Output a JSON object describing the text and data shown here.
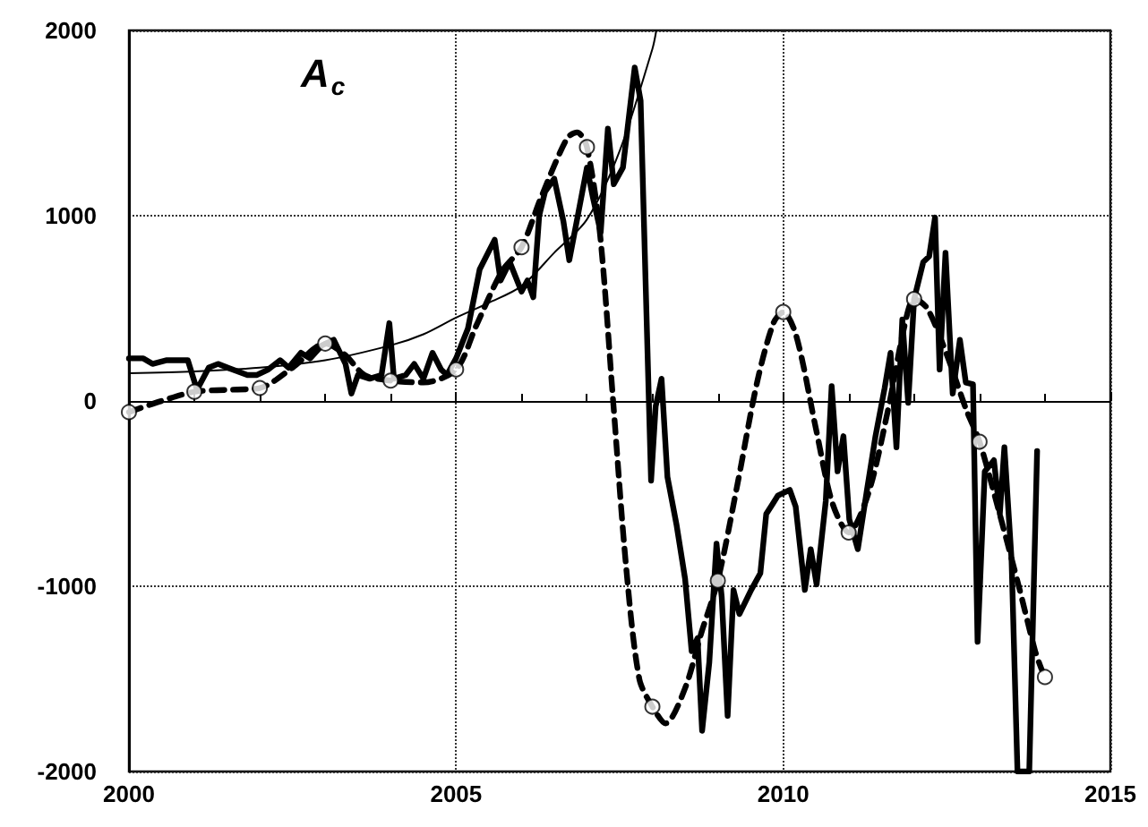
{
  "chart_data": {
    "type": "line",
    "title": "A$_{c}$",
    "xlim": [
      2000,
      2015
    ],
    "xticks": [
      2000,
      2005,
      2010,
      2015
    ],
    "ylim": [
      -2000,
      2000
    ],
    "yticks": [
      -2000,
      -1000,
      0,
      1000,
      2000
    ],
    "grid": true,
    "series": [
      {
        "color": "#000000",
        "line_style": "solid",
        "marker": "none",
        "x": [
          2000.0,
          2000.22,
          2000.36,
          2000.58,
          2000.76,
          2000.9,
          2001.04,
          2001.22,
          2001.36,
          2001.58,
          2001.81,
          2001.95,
          2002.13,
          2002.31,
          2002.44,
          2002.63,
          2002.77,
          2002.95,
          2003.13,
          2003.31,
          2003.4,
          2003.5,
          2003.68,
          2003.86,
          2003.98,
          2004.05,
          2004.23,
          2004.36,
          2004.5,
          2004.64,
          2004.77,
          2004.86,
          2005.0,
          2005.18,
          2005.36,
          2005.59,
          2005.68,
          2005.82,
          2006.0,
          2006.09,
          2006.18,
          2006.27,
          2006.36,
          2006.5,
          2006.64,
          2006.73,
          2006.86,
          2007.0,
          2007.09,
          2007.21,
          2007.32,
          2007.41,
          2007.55,
          2007.73,
          2007.82,
          2007.98,
          2008.05,
          2008.14,
          2008.23,
          2008.37,
          2008.5,
          2008.6,
          2008.69,
          2008.76,
          2008.87,
          2008.98,
          2009.06,
          2009.15,
          2009.24,
          2009.33,
          2009.51,
          2009.65,
          2009.74,
          2009.83,
          2009.92,
          2010.1,
          2010.19,
          2010.33,
          2010.42,
          2010.51,
          2010.65,
          2010.74,
          2010.83,
          2010.92,
          2011.01,
          2011.14,
          2011.28,
          2011.41,
          2011.55,
          2011.64,
          2011.73,
          2011.82,
          2011.91,
          2012.0,
          2012.14,
          2012.23,
          2012.32,
          2012.39,
          2012.48,
          2012.59,
          2012.7,
          2012.79,
          2012.9,
          2012.97,
          2013.08,
          2013.22,
          2013.31,
          2013.38,
          2013.49,
          2013.58,
          2013.76,
          2013.88
        ],
        "values": [
          230,
          230,
          200,
          220,
          220,
          220,
          60,
          180,
          200,
          170,
          140,
          140,
          170,
          220,
          180,
          260,
          230,
          300,
          330,
          200,
          40,
          140,
          120,
          140,
          420,
          120,
          140,
          200,
          120,
          260,
          170,
          140,
          230,
          390,
          710,
          870,
          650,
          750,
          590,
          650,
          560,
          1000,
          1130,
          1200,
          970,
          760,
          1000,
          1260,
          1100,
          910,
          1470,
          1170,
          1260,
          1800,
          1620,
          -430,
          -30,
          120,
          -410,
          -670,
          -960,
          -1350,
          -1280,
          -1780,
          -1410,
          -770,
          -1060,
          -1700,
          -1020,
          -1150,
          -1020,
          -930,
          -610,
          -560,
          -510,
          -480,
          -570,
          -1020,
          -800,
          -990,
          -540,
          80,
          -380,
          -190,
          -640,
          -800,
          -480,
          -190,
          70,
          260,
          -250,
          440,
          -10,
          550,
          750,
          780,
          990,
          170,
          800,
          40,
          330,
          100,
          90,
          -1300,
          -380,
          -320,
          -610,
          -250,
          -860,
          -2000,
          -2000,
          -270
        ]
      },
      {
        "color": "#000000",
        "line_style": "dashed",
        "marker": "none",
        "x": [
          2000,
          2000.5,
          2001,
          2001.5,
          2002,
          2002.5,
          2003,
          2003.3,
          2003.6,
          2004,
          2004.5,
          2005,
          2005.3,
          2005.7,
          2006,
          2006.3,
          2006.7,
          2006.85,
          2007,
          2007.2,
          2007.4,
          2007.6,
          2007.8,
          2008,
          2008.2,
          2008.5,
          2008.75,
          2009,
          2009.3,
          2009.6,
          2009.85,
          2010,
          2010.2,
          2010.5,
          2010.75,
          2011,
          2011.3,
          2011.6,
          2011.85,
          2012,
          2012.2,
          2012.5,
          2012.8,
          2013,
          2013.3,
          2013.6,
          2013.85,
          2013.95
        ],
        "values": [
          -60,
          0,
          50,
          60,
          70,
          180,
          310,
          250,
          140,
          110,
          100,
          170,
          400,
          700,
          830,
          1100,
          1420,
          1450,
          1370,
          900,
          0,
          -900,
          -1500,
          -1650,
          -1740,
          -1550,
          -1250,
          -970,
          -450,
          100,
          420,
          480,
          350,
          -150,
          -550,
          -710,
          -500,
          -50,
          400,
          550,
          500,
          250,
          -50,
          -220,
          -600,
          -1000,
          -1350,
          -1450
        ]
      },
      {
        "color": "#000000",
        "line_style": "solid",
        "marker": "none",
        "x": [
          2000,
          2001,
          2002,
          2003,
          2004,
          2004.5,
          2005,
          2005.5,
          2006,
          2006.5,
          2007,
          2007.5,
          2008,
          2008.06
        ],
        "values": [
          150,
          160,
          180,
          220,
          300,
          360,
          450,
          530,
          620,
          800,
          980,
          1350,
          1900,
          2000
        ]
      },
      {
        "type": "scatter",
        "color": "#000000",
        "marker": "circle",
        "x": [
          2000,
          2001,
          2002,
          2003,
          2004,
          2005,
          2006,
          2007,
          2008,
          2009,
          2010,
          2011,
          2012,
          2013,
          2014
        ],
        "values": [
          -60,
          50,
          70,
          310,
          110,
          170,
          830,
          1370,
          -1650,
          -970,
          480,
          -710,
          550,
          -220,
          -1490
        ]
      }
    ]
  }
}
